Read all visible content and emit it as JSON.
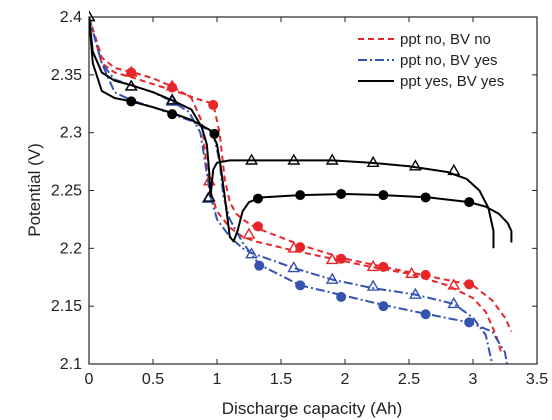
{
  "chart_data": {
    "type": "line",
    "xlabel": "Discharge capacity (Ah)",
    "ylabel": "Potential (V)",
    "xlim": [
      0,
      3.5
    ],
    "ylim": [
      2.1,
      2.4
    ],
    "xticks": [
      "0",
      "0.5",
      "1",
      "1.5",
      "2",
      "2.5",
      "3",
      "3.5"
    ],
    "yticks": [
      "2.1",
      "2.15",
      "2.2",
      "2.25",
      "2.3",
      "2.35",
      "2.4"
    ],
    "grid": false,
    "legend_position": "top-right",
    "legend": [
      {
        "label": "ppt no, BV no",
        "color": "#e8262a",
        "dash": "dashed"
      },
      {
        "label": "ppt no, BV yes",
        "color": "#3553b0",
        "dash": "dashdot"
      },
      {
        "label": "ppt yes, BV yes",
        "color": "#000000",
        "dash": "solid"
      }
    ],
    "series": [
      {
        "color": "#e8262a",
        "dash": "dashed",
        "marker": "triangle",
        "x": [
          0,
          0.1,
          0.2,
          0.35,
          0.5,
          0.65,
          0.8,
          0.88,
          0.92,
          0.96,
          1.0,
          1.05,
          1.1,
          1.2,
          1.3,
          1.6,
          1.9,
          2.2,
          2.5,
          2.8,
          3.0,
          3.1,
          3.18,
          3.22
        ],
        "y": [
          2.4,
          2.365,
          2.356,
          2.352,
          2.347,
          2.34,
          2.33,
          2.31,
          2.27,
          2.245,
          2.232,
          2.225,
          2.218,
          2.21,
          2.206,
          2.198,
          2.191,
          2.184,
          2.178,
          2.168,
          2.157,
          2.145,
          2.125,
          2.11
        ],
        "markers_x": [
          0,
          0.33,
          0.65,
          0.94,
          1.25,
          1.6,
          1.9,
          2.22,
          2.52,
          2.85
        ],
        "markers_y": [
          2.4,
          2.352,
          2.34,
          2.258,
          2.212,
          2.2,
          2.19,
          2.184,
          2.178,
          2.168
        ]
      },
      {
        "color": "#e8262a",
        "dash": "dashed",
        "marker": "circle",
        "x": [
          0,
          0.1,
          0.2,
          0.33,
          0.5,
          0.7,
          0.85,
          0.97,
          1.02,
          1.06,
          1.1,
          1.15,
          1.2,
          1.3,
          1.65,
          2.0,
          2.3,
          2.65,
          3.0,
          3.15,
          3.25,
          3.3
        ],
        "y": [
          2.4,
          2.36,
          2.352,
          2.348,
          2.342,
          2.335,
          2.329,
          2.325,
          2.3,
          2.26,
          2.24,
          2.23,
          2.225,
          2.218,
          2.203,
          2.191,
          2.184,
          2.176,
          2.168,
          2.155,
          2.14,
          2.128
        ],
        "markers_x": [
          0.33,
          0.65,
          0.97,
          1.32,
          1.65,
          1.97,
          2.3,
          2.63,
          2.97
        ],
        "markers_y": [
          2.352,
          2.339,
          2.324,
          2.219,
          2.201,
          2.191,
          2.184,
          2.177,
          2.169
        ]
      },
      {
        "color": "#3553b0",
        "dash": "dashdot",
        "marker": "triangle",
        "x": [
          0,
          0.1,
          0.2,
          0.33,
          0.5,
          0.65,
          0.78,
          0.87,
          0.92,
          0.95,
          1.0,
          1.1,
          1.2,
          1.27,
          1.6,
          1.9,
          2.2,
          2.55,
          2.85,
          3.0,
          3.1,
          3.15,
          3.16
        ],
        "y": [
          2.4,
          2.36,
          2.346,
          2.341,
          2.335,
          2.327,
          2.318,
          2.3,
          2.265,
          2.245,
          2.225,
          2.21,
          2.2,
          2.196,
          2.183,
          2.173,
          2.166,
          2.16,
          2.152,
          2.14,
          2.125,
          2.1,
          2.09
        ],
        "markers_x": [
          0.33,
          0.65,
          0.93,
          1.27,
          1.6,
          1.9,
          2.22,
          2.55,
          2.85
        ],
        "markers_y": [
          2.34,
          2.327,
          2.243,
          2.195,
          2.183,
          2.173,
          2.167,
          2.16,
          2.152
        ]
      },
      {
        "color": "#3553b0",
        "dash": "dashdot",
        "marker": "circle",
        "x": [
          0,
          0.1,
          0.2,
          0.33,
          0.5,
          0.65,
          0.8,
          0.97,
          1.02,
          1.05,
          1.1,
          1.2,
          1.33,
          1.65,
          2.0,
          2.3,
          2.65,
          2.97,
          3.15,
          3.25,
          3.28
        ],
        "y": [
          2.4,
          2.36,
          2.335,
          2.328,
          2.322,
          2.316,
          2.31,
          2.3,
          2.275,
          2.245,
          2.225,
          2.205,
          2.186,
          2.168,
          2.159,
          2.151,
          2.143,
          2.136,
          2.128,
          2.11,
          2.09
        ],
        "markers_x": [
          1.33,
          1.65,
          1.97,
          2.3,
          2.63,
          2.97
        ],
        "markers_y": [
          2.185,
          2.168,
          2.158,
          2.15,
          2.143,
          2.136
        ]
      },
      {
        "color": "#000000",
        "dash": "solid",
        "marker": "triangle",
        "x": [
          0,
          0.03,
          0.1,
          0.2,
          0.33,
          0.5,
          0.65,
          0.8,
          0.88,
          0.92,
          0.94,
          0.95,
          0.97,
          1.0,
          1.1,
          1.3,
          1.6,
          1.9,
          2.2,
          2.5,
          2.8,
          2.95,
          3.05,
          3.12,
          3.16,
          3.16
        ],
        "y": [
          2.4,
          2.37,
          2.352,
          2.345,
          2.341,
          2.335,
          2.328,
          2.32,
          2.305,
          2.29,
          2.265,
          2.245,
          2.268,
          2.274,
          2.276,
          2.276,
          2.276,
          2.276,
          2.274,
          2.271,
          2.266,
          2.26,
          2.25,
          2.235,
          2.215,
          2.2
        ],
        "markers_x": [
          0,
          0.33,
          0.65,
          0.94,
          1.27,
          1.6,
          1.9,
          2.22,
          2.55,
          2.85
        ],
        "markers_y": [
          2.4,
          2.34,
          2.328,
          2.244,
          2.276,
          2.276,
          2.276,
          2.274,
          2.271,
          2.267
        ]
      },
      {
        "color": "#000000",
        "dash": "solid",
        "marker": "circle",
        "x": [
          0,
          0.03,
          0.1,
          0.2,
          0.33,
          0.5,
          0.65,
          0.8,
          0.95,
          1.0,
          1.03,
          1.06,
          1.1,
          1.13,
          1.16,
          1.2,
          1.25,
          1.35,
          1.65,
          2.0,
          2.3,
          2.65,
          2.97,
          3.1,
          3.2,
          3.27,
          3.3,
          3.3
        ],
        "y": [
          2.4,
          2.36,
          2.336,
          2.33,
          2.327,
          2.322,
          2.317,
          2.311,
          2.302,
          2.29,
          2.27,
          2.245,
          2.21,
          2.206,
          2.215,
          2.232,
          2.24,
          2.244,
          2.246,
          2.247,
          2.246,
          2.244,
          2.24,
          2.236,
          2.23,
          2.222,
          2.215,
          2.205
        ],
        "markers_x": [
          0.33,
          0.65,
          0.98,
          1.32,
          1.65,
          1.97,
          2.3,
          2.63,
          2.97
        ],
        "markers_y": [
          2.327,
          2.316,
          2.299,
          2.243,
          2.246,
          2.247,
          2.246,
          2.244,
          2.24
        ]
      }
    ]
  }
}
